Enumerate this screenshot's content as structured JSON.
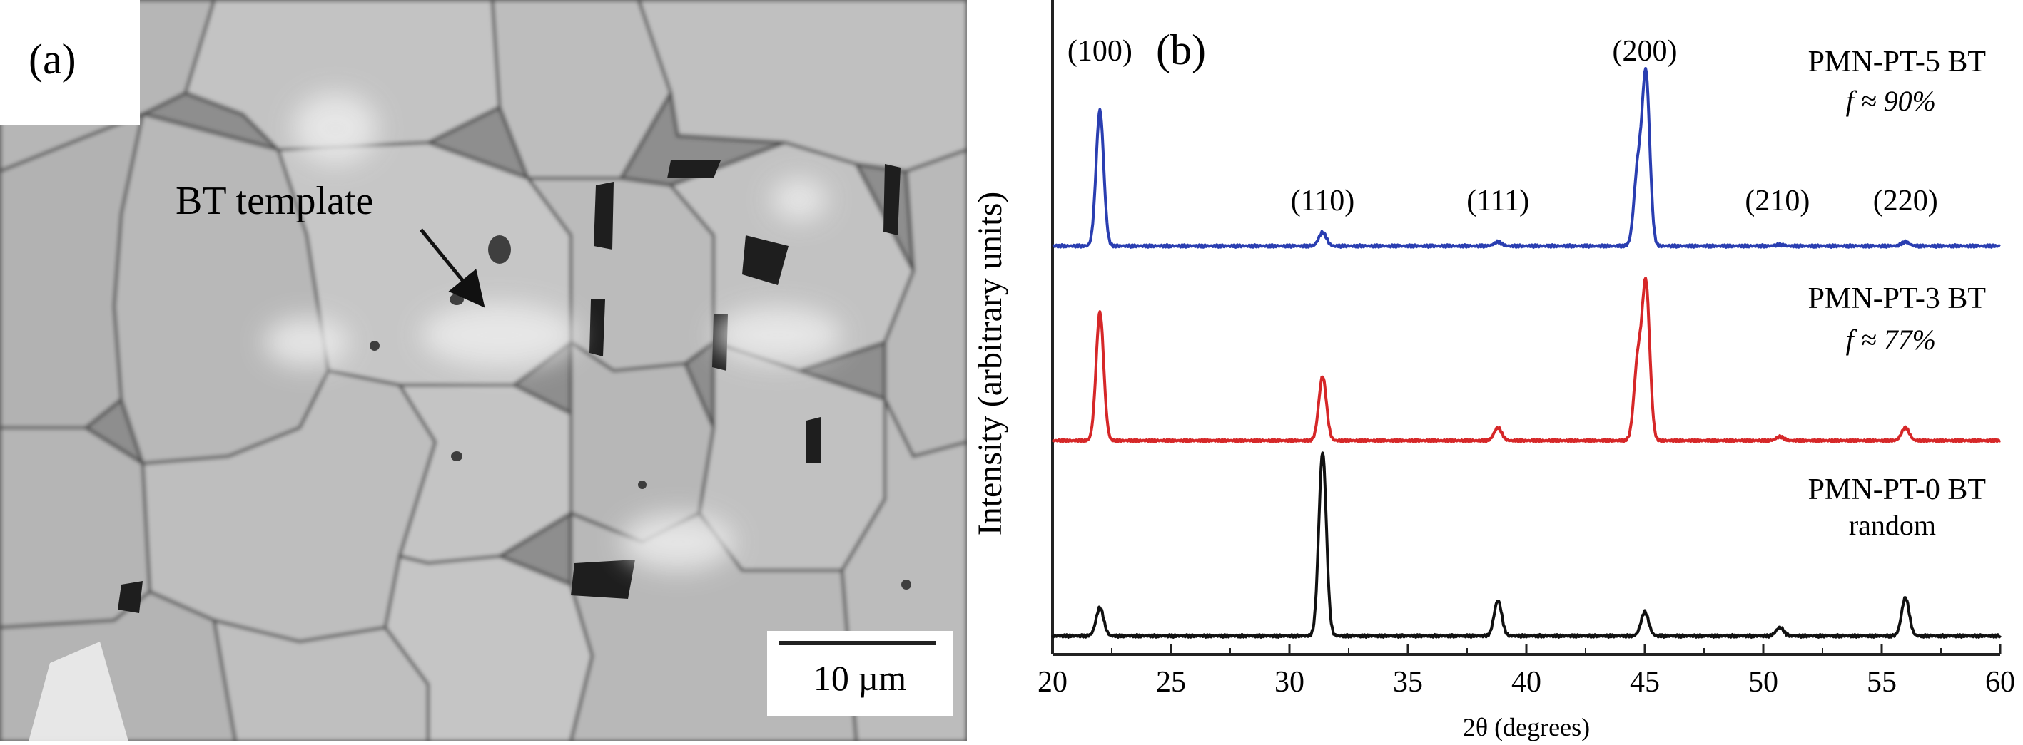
{
  "panel_a": {
    "label": "(a)",
    "annotation": "BT template",
    "scale_bar_label": "10 µm"
  },
  "chart_data": {
    "type": "line",
    "panel_label": "(b)",
    "title": "",
    "xlabel": "2θ (degrees)",
    "ylabel": "Intensity (arbitrary units)",
    "xlim": [
      20,
      60
    ],
    "x_ticks": [
      "20",
      "25",
      "30",
      "35",
      "40",
      "45",
      "50",
      "55",
      "60"
    ],
    "y_ticks": false,
    "grid": false,
    "peak_labels": [
      {
        "text": "(100)",
        "x": 22.0
      },
      {
        "text": "(110)",
        "x": 31.4
      },
      {
        "text": "(111)",
        "x": 38.8
      },
      {
        "text": "(200)",
        "x": 45.0
      },
      {
        "text": "(210)",
        "x": 50.6
      },
      {
        "text": "(220)",
        "x": 56.0
      }
    ],
    "series": [
      {
        "name": "PMN-PT-5 BT",
        "note": "f ≈ 90%",
        "color": "#2a3eb1",
        "baseline": 0.0,
        "peaks": [
          {
            "x": 22.0,
            "height": 1.0
          },
          {
            "x": 31.4,
            "height": 0.1
          },
          {
            "x": 38.8,
            "height": 0.03
          },
          {
            "x": 44.7,
            "height": 0.55
          },
          {
            "x": 45.05,
            "height": 1.25
          },
          {
            "x": 50.7,
            "height": 0.01
          },
          {
            "x": 56.0,
            "height": 0.03
          }
        ]
      },
      {
        "name": "PMN-PT-3 BT",
        "note": "f ≈ 77%",
        "color": "#d62728",
        "baseline": 0.0,
        "peaks": [
          {
            "x": 22.0,
            "height": 1.0
          },
          {
            "x": 31.4,
            "height": 0.5
          },
          {
            "x": 38.8,
            "height": 0.1
          },
          {
            "x": 44.7,
            "height": 0.6
          },
          {
            "x": 45.05,
            "height": 1.2
          },
          {
            "x": 50.7,
            "height": 0.03
          },
          {
            "x": 56.0,
            "height": 0.1
          }
        ]
      },
      {
        "name": "PMN-PT-0 BT",
        "note": "random",
        "color": "#111111",
        "baseline": 0.0,
        "peaks": [
          {
            "x": 22.0,
            "height": 0.2
          },
          {
            "x": 31.4,
            "height": 1.3
          },
          {
            "x": 38.8,
            "height": 0.25
          },
          {
            "x": 45.0,
            "height": 0.17
          },
          {
            "x": 50.7,
            "height": 0.06
          },
          {
            "x": 56.0,
            "height": 0.27
          }
        ]
      }
    ]
  }
}
